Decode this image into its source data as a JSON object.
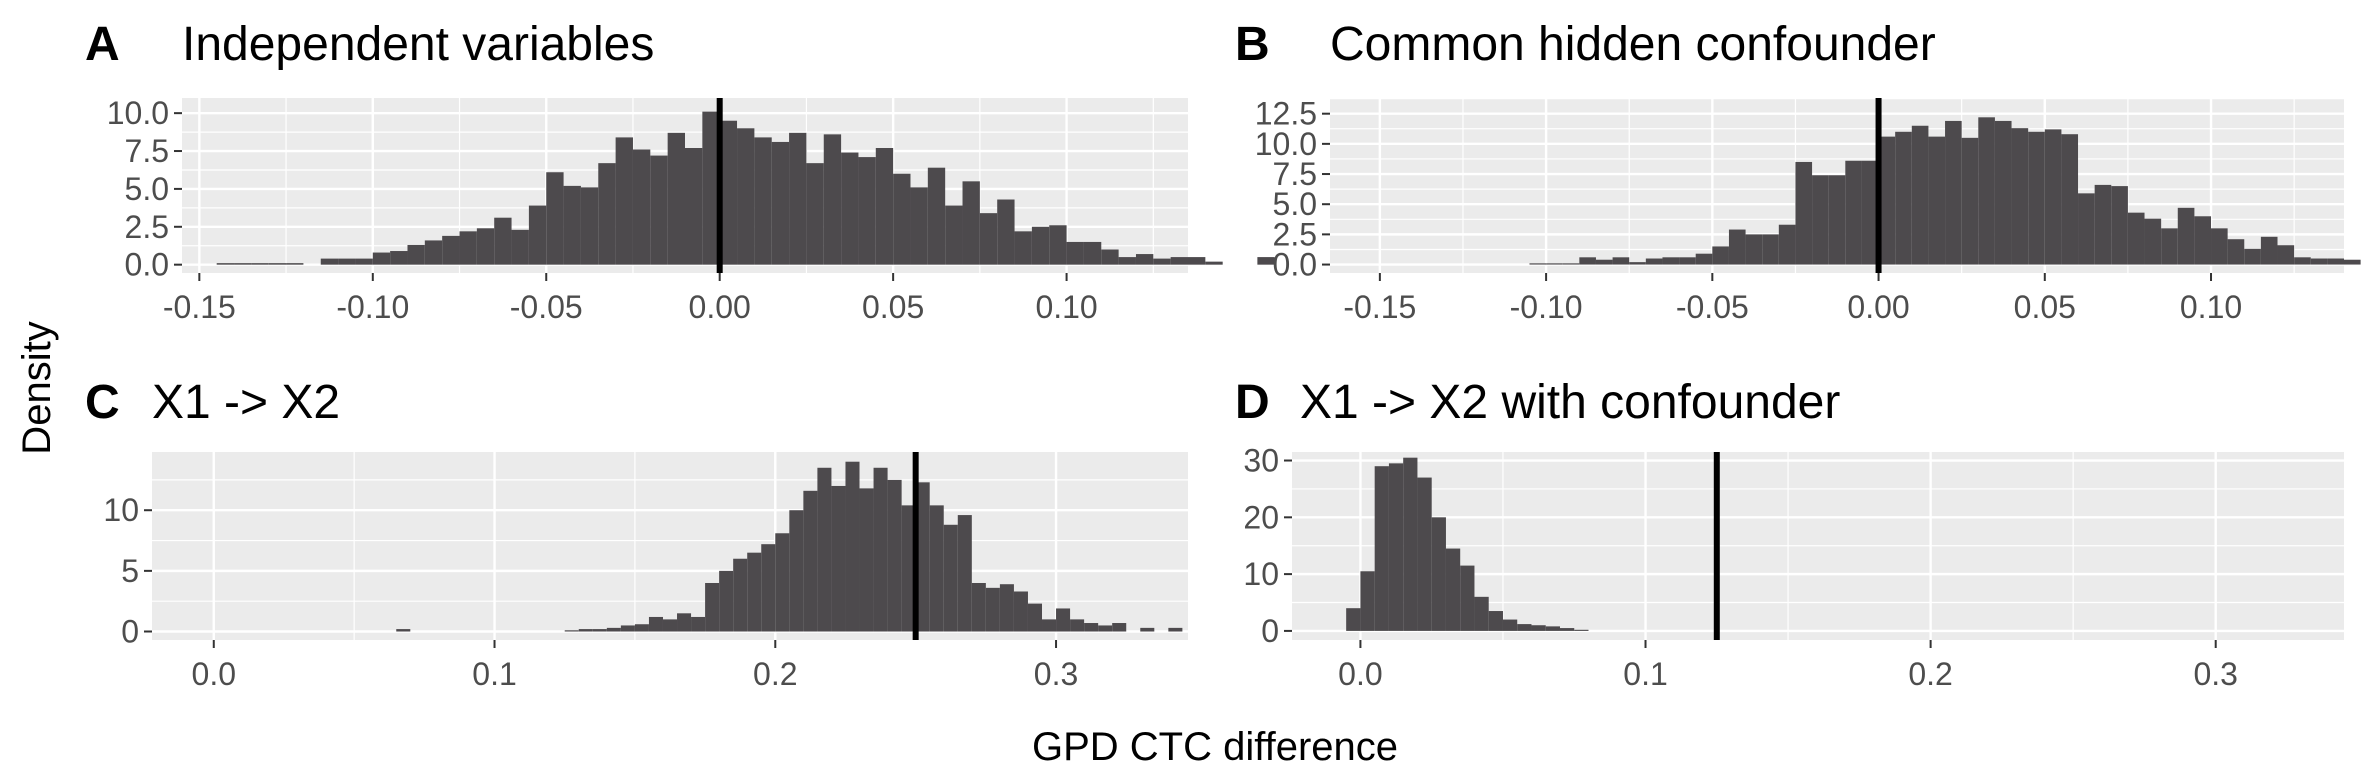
{
  "figure": {
    "ylabel": "Density",
    "xlabel": "GPD CTC difference"
  },
  "colors": {
    "panel_background": "#ebebeb",
    "grid_major": "#ffffff",
    "bar_fill": "#4d4a4d",
    "reference_line": "#000000",
    "tick_text": "#4d4d4d"
  },
  "chart_data": [
    {
      "type": "bar",
      "subtype": "histogram",
      "panel": "A",
      "title": "Independent variables",
      "xlim": [
        -0.155,
        0.135
      ],
      "ylim": [
        -0.55,
        11.0
      ],
      "xticks": [
        -0.15,
        -0.1,
        -0.05,
        0.0,
        0.05,
        0.1
      ],
      "xtick_labels": [
        "-0.15",
        "-0.10",
        "-0.05",
        "0.00",
        "0.05",
        "0.10"
      ],
      "yticks": [
        0.0,
        2.5,
        5.0,
        7.5,
        10.0
      ],
      "ytick_labels": [
        "0.0",
        "2.5",
        "5.0",
        "7.5",
        "10.0"
      ],
      "bin_start": -0.145,
      "bin_width": 0.005,
      "values": [
        0.1,
        0.1,
        0.1,
        0.1,
        0.1,
        0,
        0.4,
        0.4,
        0.4,
        0.8,
        0.9,
        1.3,
        1.6,
        1.9,
        2.2,
        2.4,
        3.1,
        2.3,
        3.9,
        6.1,
        5.2,
        5.1,
        6.7,
        8.4,
        7.6,
        7.2,
        8.7,
        7.7,
        10.1,
        9.5,
        9.0,
        8.4,
        8.1,
        8.7,
        6.7,
        8.6,
        7.4,
        7.1,
        7.7,
        6.0,
        5.1,
        6.4,
        3.9,
        5.5,
        3.4,
        4.3,
        2.2,
        2.5,
        2.6,
        1.5,
        1.5,
        1.0,
        0.5,
        0.7,
        0.4,
        0.5,
        0.5,
        0.2,
        0,
        0,
        0.5
      ],
      "vline": 0.0
    },
    {
      "type": "bar",
      "subtype": "histogram",
      "panel": "B",
      "title": "Common hidden confounder",
      "xlim": [
        -0.165,
        0.14
      ],
      "ylim": [
        -0.7,
        13.8
      ],
      "xticks": [
        -0.15,
        -0.1,
        -0.05,
        0.0,
        0.05,
        0.1
      ],
      "xtick_labels": [
        "-0.15",
        "-0.10",
        "-0.05",
        "0.00",
        "0.05",
        "0.10"
      ],
      "yticks": [
        0.0,
        2.5,
        5.0,
        7.5,
        10.0,
        12.5
      ],
      "ytick_labels": [
        "0.0",
        "2.5",
        "5.0",
        "7.5",
        "10.0",
        "12.5"
      ],
      "bin_start": -0.105,
      "bin_width": 0.005,
      "values": [
        0.1,
        0.1,
        0.1,
        0.6,
        0.4,
        0.6,
        0.2,
        0.5,
        0.6,
        0.6,
        0.9,
        1.5,
        2.9,
        2.5,
        2.5,
        3.3,
        8.5,
        7.4,
        7.4,
        8.6,
        8.6,
        10.6,
        11.0,
        11.5,
        10.6,
        11.9,
        10.5,
        12.2,
        11.9,
        11.3,
        11.0,
        11.2,
        10.8,
        5.9,
        6.6,
        6.5,
        4.3,
        3.8,
        3.0,
        4.7,
        4.0,
        3.0,
        2.1,
        1.3,
        2.3,
        1.6,
        0.6,
        0.5,
        0.5,
        0.4,
        0,
        0,
        0,
        0,
        0,
        0,
        0.2
      ],
      "vline": 0.0
    },
    {
      "type": "bar",
      "subtype": "histogram",
      "panel": "C",
      "title": "X1 -> X2",
      "xlim": [
        -0.022,
        0.347
      ],
      "ylim": [
        -0.7,
        14.8
      ],
      "xticks": [
        0.0,
        0.1,
        0.2,
        0.3
      ],
      "xtick_labels": [
        "0.0",
        "0.1",
        "0.2",
        "0.3"
      ],
      "yticks": [
        0,
        5,
        10
      ],
      "ytick_labels": [
        "0",
        "5",
        "10"
      ],
      "bin_start": 0.065,
      "bin_width": 0.005,
      "values": [
        0.2,
        0,
        0,
        0,
        0,
        0,
        0,
        0,
        0,
        0,
        0,
        0,
        0.1,
        0.2,
        0.2,
        0.3,
        0.5,
        0.6,
        1.2,
        1.0,
        1.5,
        1.2,
        4.0,
        5.0,
        6.0,
        6.5,
        7.2,
        8.1,
        10.0,
        11.6,
        13.5,
        12.0,
        14.0,
        11.8,
        13.5,
        12.5,
        10.4,
        12.3,
        10.4,
        8.8,
        9.6,
        4.0,
        3.6,
        3.9,
        3.3,
        2.3,
        1.0,
        1.9,
        1.0,
        0.7,
        0.5,
        0.7,
        0,
        0.3,
        0,
        0.3
      ],
      "vline": 0.25
    },
    {
      "type": "bar",
      "subtype": "histogram",
      "panel": "D",
      "title": "X1 -> X2 with confounder",
      "xlim": [
        -0.024,
        0.345
      ],
      "ylim": [
        -1.6,
        31.5
      ],
      "xticks": [
        0.0,
        0.1,
        0.2,
        0.3
      ],
      "xtick_labels": [
        "0.0",
        "0.1",
        "0.2",
        "0.3"
      ],
      "yticks": [
        0,
        10,
        20,
        30
      ],
      "ytick_labels": [
        "0",
        "10",
        "20",
        "30"
      ],
      "bin_start": -0.005,
      "bin_width": 0.005,
      "values": [
        4.0,
        10.5,
        29.0,
        29.5,
        30.5,
        27.0,
        20.0,
        14.5,
        11.5,
        6.0,
        3.5,
        2.0,
        1.2,
        1.0,
        0.8,
        0.5,
        0.2
      ],
      "vline": 0.125
    }
  ]
}
